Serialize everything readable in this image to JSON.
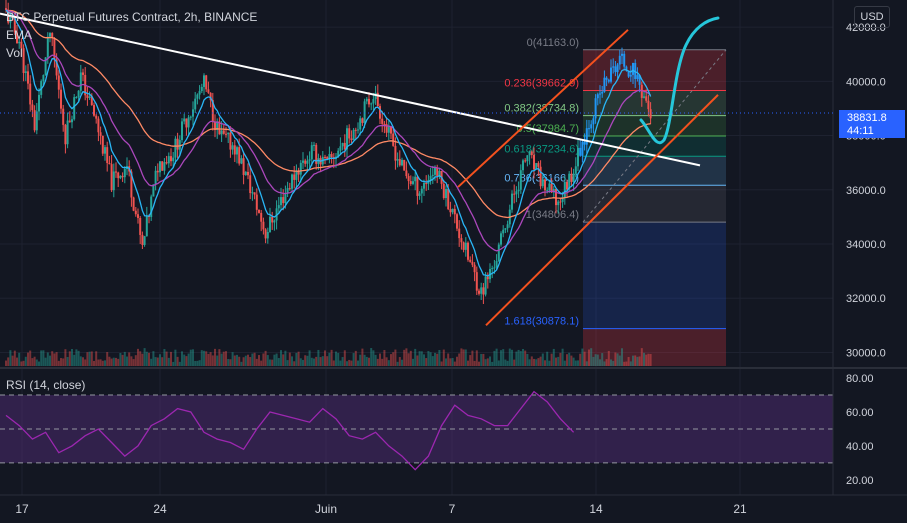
{
  "header": {
    "title": "BTC Perpetual Futures Contract, 2h, BINANCE",
    "indicators": [
      "EMA",
      "Vol"
    ],
    "currency": "USD"
  },
  "rsi_label": "RSI (14, close)",
  "price_tag": {
    "price": "38831.8",
    "countdown": "44:11"
  },
  "colors": {
    "background": "#131722",
    "up_candle": "#26a69a",
    "down_candle": "#ef5350",
    "blue_candle": "#2196f3",
    "ema_slow": "#ff8a65",
    "ema_mid": "#ab47bc",
    "ema_fast": "#29b6f6",
    "trendline": "#ffffff",
    "channel": "#f4511e",
    "drawing": "#26c6da",
    "rsi_line": "#9c27b0",
    "rsi_band": "#4a2a6e"
  },
  "chart_data": [
    {
      "type": "candlestick",
      "title": "BTC Perpetual Futures Contract, 2h, BINANCE",
      "x_ticks": [
        "17",
        "24",
        "Juin",
        "7",
        "14",
        "21"
      ],
      "y_ticks": [
        "42000.0",
        "40000.0",
        "38000.0",
        "36000.0",
        "34000.0",
        "32000.0",
        "30000.0"
      ],
      "ylim": [
        29500,
        43000
      ],
      "fib_levels": [
        {
          "ratio": "0",
          "price": "41163.0",
          "color": "#787b86"
        },
        {
          "ratio": "0.236",
          "price": "39662.9",
          "color": "#f23645"
        },
        {
          "ratio": "0.382",
          "price": "38734.8",
          "color": "#81c784"
        },
        {
          "ratio": "0.5",
          "price": "37984.7",
          "color": "#4caf50"
        },
        {
          "ratio": "0.618",
          "price": "37234.6",
          "color": "#089981"
        },
        {
          "ratio": "0.786",
          "price": "36166.7",
          "color": "#64b5f6"
        },
        {
          "ratio": "1",
          "price": "34806.4",
          "color": "#787b86"
        },
        {
          "ratio": "1.618",
          "price": "30878.1",
          "color": "#2962ff"
        }
      ],
      "price_path": [
        [
          0,
          42700
        ],
        [
          1,
          41500
        ],
        [
          2,
          38400
        ],
        [
          3,
          41800
        ],
        [
          4,
          38000
        ],
        [
          5,
          40200
        ],
        [
          6,
          38500
        ],
        [
          7,
          36300
        ],
        [
          8,
          36900
        ],
        [
          9,
          33800
        ],
        [
          10,
          36900
        ],
        [
          11,
          37400
        ],
        [
          12,
          38800
        ],
        [
          13,
          39900
        ],
        [
          14,
          38000
        ],
        [
          15,
          37600
        ],
        [
          16,
          36100
        ],
        [
          17,
          34400
        ],
        [
          18,
          35600
        ],
        [
          19,
          36700
        ],
        [
          20,
          37400
        ],
        [
          21,
          36900
        ],
        [
          22,
          37700
        ],
        [
          23,
          38500
        ],
        [
          24,
          39600
        ],
        [
          25,
          38000
        ],
        [
          26,
          36600
        ],
        [
          27,
          36000
        ],
        [
          28,
          36800
        ],
        [
          29,
          35400
        ],
        [
          30,
          33700
        ],
        [
          31,
          32200
        ],
        [
          32,
          33500
        ],
        [
          33,
          35600
        ],
        [
          34,
          37300
        ],
        [
          35,
          36200
        ],
        [
          36,
          35500
        ],
        [
          37,
          36800
        ],
        [
          38,
          38500
        ],
        [
          39,
          39900
        ],
        [
          40,
          40800
        ],
        [
          41,
          40300
        ],
        [
          42,
          38800
        ]
      ],
      "last_price": 38831.8
    },
    {
      "type": "line",
      "title": "RSI (14, close)",
      "y_ticks": [
        "80.00",
        "60.00",
        "40.00",
        "20.00"
      ],
      "ylim": [
        17,
        80
      ],
      "bands": [
        70,
        50,
        30
      ],
      "values": [
        58,
        52,
        44,
        48,
        36,
        40,
        46,
        50,
        42,
        34,
        40,
        52,
        56,
        62,
        60,
        48,
        44,
        42,
        38,
        50,
        60,
        58,
        56,
        54,
        62,
        56,
        46,
        44,
        48,
        40,
        34,
        26,
        34,
        52,
        64,
        58,
        56,
        52,
        52,
        62,
        72,
        66,
        56,
        48
      ]
    }
  ]
}
